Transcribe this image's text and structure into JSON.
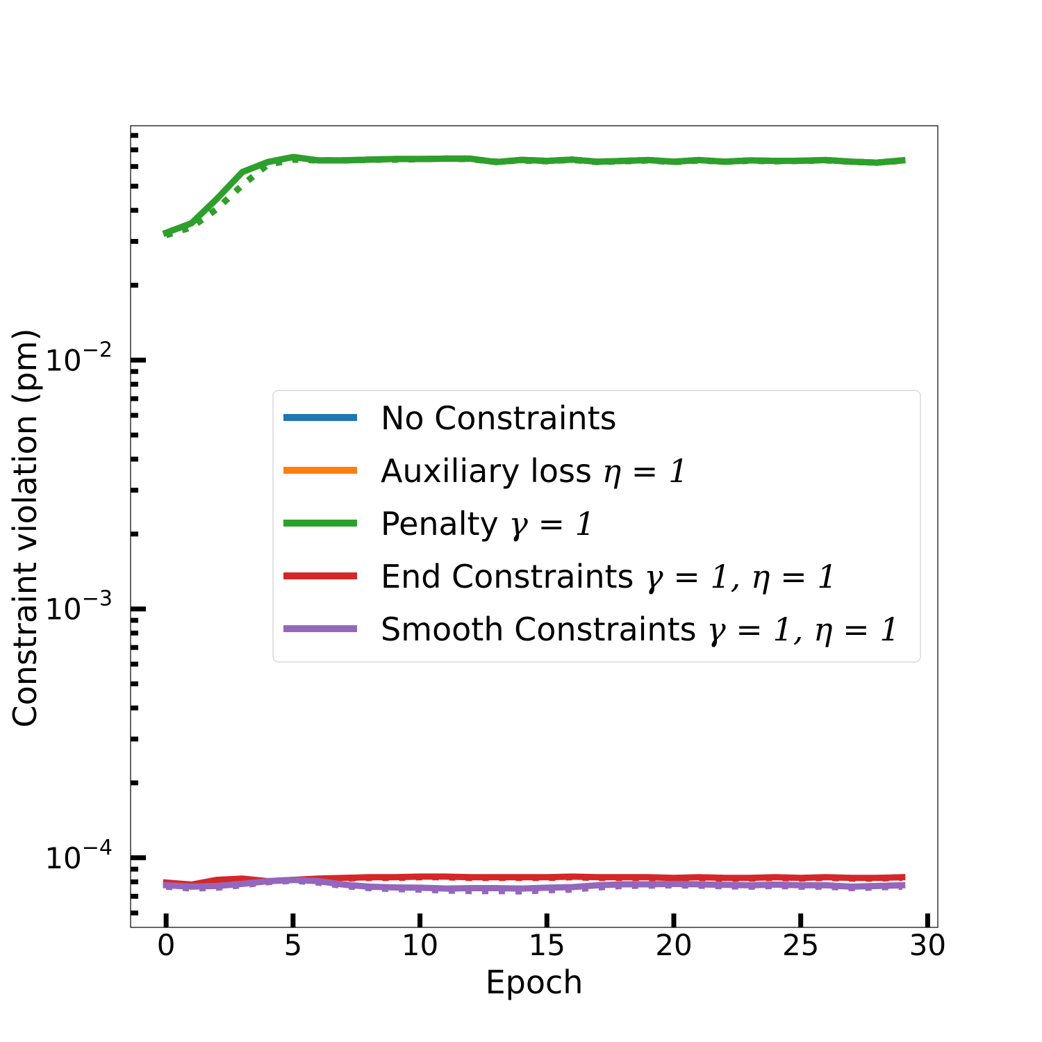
{
  "chart_data": {
    "type": "line",
    "xlabel": "Epoch",
    "ylabel": "Constraint violation (pm)",
    "xlim": [
      -1.4,
      30.4
    ],
    "ylim": [
      5.25e-05,
      0.0875
    ],
    "yscale": "log",
    "grid": false,
    "x_ticks": [
      {
        "value": 0,
        "label": "0"
      },
      {
        "value": 5,
        "label": "5"
      },
      {
        "value": 10,
        "label": "10"
      },
      {
        "value": 15,
        "label": "15"
      },
      {
        "value": 20,
        "label": "20"
      },
      {
        "value": 25,
        "label": "25"
      },
      {
        "value": 30,
        "label": "30"
      }
    ],
    "y_ticks": [
      {
        "value": 0.01,
        "base": "10",
        "exponent": "−2"
      },
      {
        "value": 0.001,
        "base": "10",
        "exponent": "−3"
      },
      {
        "value": 0.0001,
        "base": "10",
        "exponent": "−4"
      }
    ],
    "legend": {
      "placement": "center-right",
      "entries": [
        {
          "color": "#1f77b4",
          "text": "No Constraints",
          "math": ""
        },
        {
          "color": "#ff7f0e",
          "text": "Auxiliary loss ",
          "math": "η = 1"
        },
        {
          "color": "#2ca02c",
          "text": "Penalty ",
          "math": "γ = 1"
        },
        {
          "color": "#d62728",
          "text": "End Constraints ",
          "math": "γ = 1, η = 1"
        },
        {
          "color": "#9467bd",
          "text": "Smooth Constraints ",
          "math": "γ = 1, η = 1"
        }
      ]
    },
    "x": [
      0,
      1,
      2,
      3,
      4,
      5,
      6,
      7,
      8,
      9,
      10,
      11,
      12,
      13,
      14,
      15,
      16,
      17,
      18,
      19,
      20,
      21,
      22,
      23,
      24,
      25,
      26,
      27,
      28,
      29
    ],
    "series": [
      {
        "name": "No Constraints",
        "color": "#1f77b4",
        "style": "solid",
        "width": 9,
        "values": [
          0.0325,
          0.0355,
          0.0445,
          0.057,
          0.0625,
          0.0655,
          0.0635,
          0.0635,
          0.064,
          0.0643,
          0.0643,
          0.0645,
          0.0645,
          0.0625,
          0.0638,
          0.0632,
          0.064,
          0.0627,
          0.0632,
          0.0637,
          0.0627,
          0.0637,
          0.0627,
          0.0635,
          0.0632,
          0.0633,
          0.0637,
          0.0627,
          0.0622,
          0.0635
        ]
      },
      {
        "name": "No Constraints (dotted)",
        "color": "#1f77b4",
        "style": "dotted",
        "width": 9,
        "values": [
          0.0318,
          0.0342,
          0.0405,
          0.0505,
          0.061,
          0.064,
          0.0635,
          0.0635,
          0.0638,
          0.064,
          0.0642,
          0.0645,
          0.0642,
          0.0627,
          0.0635,
          0.063,
          0.0638,
          0.0625,
          0.063,
          0.0635,
          0.0625,
          0.0635,
          0.0627,
          0.0633,
          0.063,
          0.0632,
          0.0635,
          0.0627,
          0.0622,
          0.0633
        ]
      },
      {
        "name": "Auxiliary loss η = 1",
        "color": "#ff7f0e",
        "style": "solid",
        "width": 9,
        "values": [
          0.0325,
          0.0355,
          0.0445,
          0.057,
          0.0625,
          0.0655,
          0.0635,
          0.0635,
          0.064,
          0.0643,
          0.0643,
          0.0645,
          0.0645,
          0.0625,
          0.0638,
          0.0632,
          0.064,
          0.0627,
          0.0632,
          0.0637,
          0.0627,
          0.0637,
          0.0627,
          0.0635,
          0.0632,
          0.0633,
          0.0637,
          0.0627,
          0.0622,
          0.0635
        ]
      },
      {
        "name": "Auxiliary loss η = 1 (dotted)",
        "color": "#ff7f0e",
        "style": "dotted",
        "width": 9,
        "values": [
          0.0318,
          0.0342,
          0.0405,
          0.0505,
          0.061,
          0.064,
          0.0635,
          0.0635,
          0.0638,
          0.064,
          0.0642,
          0.0645,
          0.0642,
          0.0627,
          0.0635,
          0.063,
          0.0638,
          0.0625,
          0.063,
          0.0635,
          0.0625,
          0.0635,
          0.0627,
          0.0633,
          0.063,
          0.0632,
          0.0635,
          0.0627,
          0.0622,
          0.0633
        ]
      },
      {
        "name": "Penalty γ = 1",
        "color": "#2ca02c",
        "style": "solid",
        "width": 9,
        "values": [
          0.0325,
          0.0355,
          0.0445,
          0.057,
          0.0625,
          0.0655,
          0.0635,
          0.0635,
          0.064,
          0.0643,
          0.0643,
          0.0645,
          0.0645,
          0.0625,
          0.0638,
          0.0632,
          0.064,
          0.0627,
          0.0632,
          0.0637,
          0.0627,
          0.0637,
          0.0627,
          0.0635,
          0.0632,
          0.0633,
          0.0637,
          0.0627,
          0.0622,
          0.0635
        ]
      },
      {
        "name": "Penalty γ = 1 (dotted)",
        "color": "#2ca02c",
        "style": "dotted",
        "width": 9,
        "values": [
          0.0318,
          0.0342,
          0.0405,
          0.0505,
          0.061,
          0.064,
          0.0635,
          0.0635,
          0.0638,
          0.064,
          0.0642,
          0.0645,
          0.0642,
          0.0627,
          0.0635,
          0.063,
          0.0638,
          0.0625,
          0.063,
          0.0635,
          0.0625,
          0.0635,
          0.0627,
          0.0633,
          0.063,
          0.0632,
          0.0635,
          0.0627,
          0.0622,
          0.0633
        ]
      },
      {
        "name": "End Constraints γ = 1, η = 1",
        "color": "#d62728",
        "style": "solid",
        "width": 9,
        "values": [
          7.95e-05,
          7.8e-05,
          8.15e-05,
          8.25e-05,
          8.05e-05,
          8.15e-05,
          8.25e-05,
          8.3e-05,
          8.35e-05,
          8.35e-05,
          8.4e-05,
          8.4e-05,
          8.35e-05,
          8.35e-05,
          8.35e-05,
          8.35e-05,
          8.4e-05,
          8.35e-05,
          8.35e-05,
          8.35e-05,
          8.3e-05,
          8.35e-05,
          8.3e-05,
          8.3e-05,
          8.35e-05,
          8.3e-05,
          8.35e-05,
          8.3e-05,
          8.3e-05,
          8.35e-05
        ]
      },
      {
        "name": "End Constraints γ = 1, η = 1 (dotted)",
        "color": "#d62728",
        "style": "dotted",
        "width": 9,
        "values": [
          7.9e-05,
          7.8e-05,
          8.05e-05,
          8.15e-05,
          8e-05,
          8.1e-05,
          8.2e-05,
          8.25e-05,
          8.3e-05,
          8.3e-05,
          8.35e-05,
          8.35e-05,
          8.3e-05,
          8.3e-05,
          8.3e-05,
          8.3e-05,
          8.35e-05,
          8.3e-05,
          8.3e-05,
          8.3e-05,
          8.25e-05,
          8.3e-05,
          8.25e-05,
          8.25e-05,
          8.3e-05,
          8.25e-05,
          8.3e-05,
          8.25e-05,
          8.25e-05,
          8.3e-05
        ]
      },
      {
        "name": "Smooth Constraints γ = 1, η = 1",
        "color": "#9467bd",
        "style": "solid",
        "width": 9,
        "values": [
          7.75e-05,
          7.65e-05,
          7.7e-05,
          7.85e-05,
          8.05e-05,
          8.15e-05,
          8.05e-05,
          7.8e-05,
          7.65e-05,
          7.6e-05,
          7.58e-05,
          7.52e-05,
          7.55e-05,
          7.55e-05,
          7.52e-05,
          7.58e-05,
          7.62e-05,
          7.75e-05,
          7.82e-05,
          7.82e-05,
          7.85e-05,
          7.82e-05,
          7.78e-05,
          7.75e-05,
          7.8e-05,
          7.75e-05,
          7.75e-05,
          7.65e-05,
          7.7e-05,
          7.75e-05
        ]
      },
      {
        "name": "Smooth Constraints γ = 1, η = 1 (dotted)",
        "color": "#9467bd",
        "style": "dotted",
        "width": 9,
        "values": [
          7.65e-05,
          7.52e-05,
          7.58e-05,
          7.75e-05,
          7.98e-05,
          8.08e-05,
          7.95e-05,
          7.7e-05,
          7.55e-05,
          7.48e-05,
          7.45e-05,
          7.38e-05,
          7.35e-05,
          7.35e-05,
          7.32e-05,
          7.4e-05,
          7.45e-05,
          7.6e-05,
          7.7e-05,
          7.72e-05,
          7.75e-05,
          7.72e-05,
          7.68e-05,
          7.65e-05,
          7.7e-05,
          7.65e-05,
          7.65e-05,
          7.55e-05,
          7.6e-05,
          7.65e-05
        ]
      }
    ]
  }
}
